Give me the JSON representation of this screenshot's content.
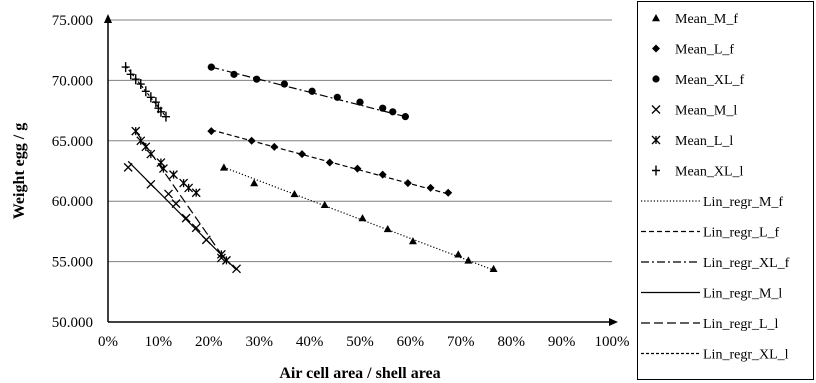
{
  "chart_data": {
    "type": "scatter",
    "title": "",
    "xlabel": "Air cell area / shell area",
    "ylabel": "Weight egg / g",
    "xlim": [
      0,
      1
    ],
    "ylim": [
      50,
      75
    ],
    "x_ticks": [
      "0%",
      "10%",
      "20%",
      "30%",
      "40%",
      "50%",
      "60%",
      "70%",
      "80%",
      "90%",
      "100%"
    ],
    "y_ticks": [
      "50.000",
      "55.000",
      "60.000",
      "65.000",
      "70.000",
      "75.000"
    ],
    "grid": "horizontal",
    "legend_position": "right",
    "series": [
      {
        "name": "Mean_M_f",
        "marker": "triangle",
        "x": [
          0.23,
          0.29,
          0.37,
          0.43,
          0.505,
          0.555,
          0.605,
          0.695,
          0.715,
          0.765
        ],
        "y": [
          62.8,
          61.5,
          60.6,
          59.7,
          58.6,
          57.7,
          56.7,
          55.6,
          55.1,
          54.4
        ]
      },
      {
        "name": "Mean_L_f",
        "marker": "diamond",
        "x": [
          0.205,
          0.285,
          0.33,
          0.385,
          0.44,
          0.495,
          0.545,
          0.595,
          0.64,
          0.675
        ],
        "y": [
          65.8,
          65.0,
          64.5,
          63.9,
          63.2,
          62.7,
          62.2,
          61.5,
          61.1,
          60.7
        ]
      },
      {
        "name": "Mean_XL_f",
        "marker": "circle",
        "x": [
          0.205,
          0.25,
          0.295,
          0.35,
          0.405,
          0.455,
          0.5,
          0.545,
          0.565,
          0.59
        ],
        "y": [
          71.1,
          70.5,
          70.1,
          69.7,
          69.1,
          68.6,
          68.2,
          67.7,
          67.4,
          67.0
        ]
      },
      {
        "name": "Mean_M_l",
        "marker": "x",
        "x": [
          0.04,
          0.085,
          0.12,
          0.135,
          0.155,
          0.175,
          0.195,
          0.225,
          0.255
        ],
        "y": [
          62.8,
          61.4,
          60.6,
          59.8,
          58.6,
          57.8,
          56.8,
          55.3,
          54.4
        ]
      },
      {
        "name": "Mean_L_l",
        "marker": "asterisk",
        "x": [
          0.055,
          0.065,
          0.075,
          0.085,
          0.105,
          0.11,
          0.13,
          0.15,
          0.16,
          0.175,
          0.225,
          0.235
        ],
        "y": [
          65.8,
          65.0,
          64.5,
          63.9,
          63.2,
          62.7,
          62.2,
          61.5,
          61.1,
          60.7,
          55.6,
          55.1
        ]
      },
      {
        "name": "Mean_XL_l",
        "marker": "plus",
        "x": [
          0.035,
          0.045,
          0.055,
          0.065,
          0.075,
          0.085,
          0.095,
          0.1,
          0.105,
          0.115
        ],
        "y": [
          71.1,
          70.5,
          70.1,
          69.7,
          69.1,
          68.6,
          68.2,
          67.7,
          67.4,
          67.0
        ]
      }
    ],
    "trendlines": [
      {
        "name": "Lin_regr_M_f",
        "style": "dotted",
        "x": [
          0.23,
          0.765
        ],
        "y": [
          62.8,
          54.3
        ]
      },
      {
        "name": "Lin_regr_L_f",
        "style": "dashed",
        "x": [
          0.205,
          0.675
        ],
        "y": [
          65.9,
          60.6
        ]
      },
      {
        "name": "Lin_regr_XL_f",
        "style": "dashdot",
        "x": [
          0.205,
          0.59
        ],
        "y": [
          71.1,
          67.0
        ]
      },
      {
        "name": "Lin_regr_M_l",
        "style": "solid",
        "x": [
          0.04,
          0.255
        ],
        "y": [
          63.3,
          54.3
        ]
      },
      {
        "name": "Lin_regr_L_l",
        "style": "longdash",
        "x": [
          0.055,
          0.235
        ],
        "y": [
          65.8,
          55.0
        ]
      },
      {
        "name": "Lin_regr_XL_l",
        "style": "shortdash",
        "x": [
          0.035,
          0.115
        ],
        "y": [
          71.2,
          67.0
        ]
      }
    ],
    "colors": {
      "marker": "#000000",
      "grid": "#808080",
      "axis": "#000000"
    }
  }
}
